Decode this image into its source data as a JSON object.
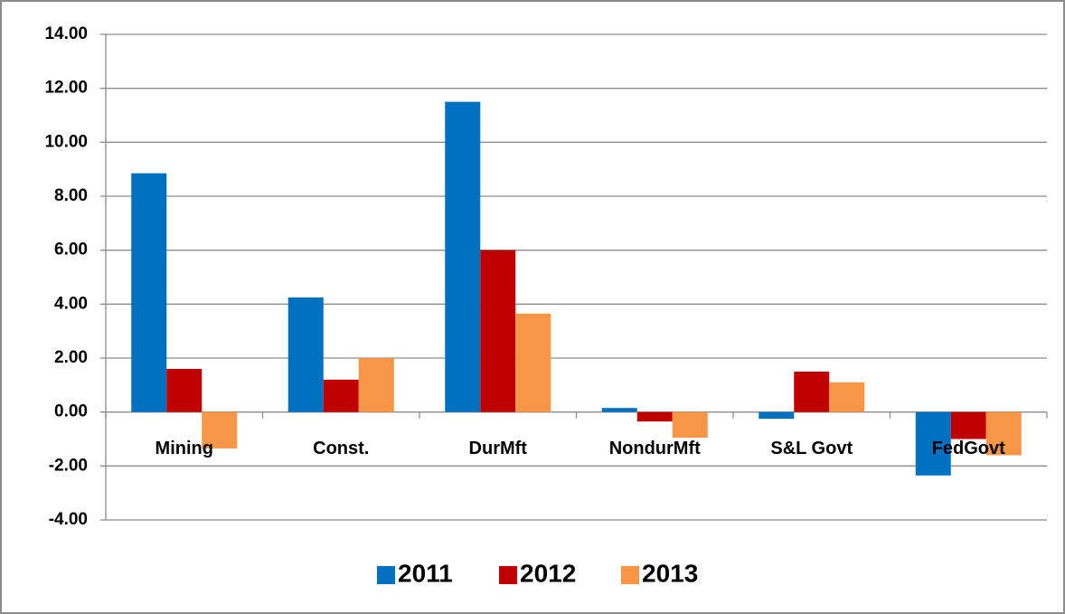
{
  "chart_data": {
    "type": "bar",
    "categories": [
      "Mining",
      "Const.",
      "DurMft",
      "NondurMft",
      "S&L Govt",
      "FedGovt"
    ],
    "series": [
      {
        "name": "2011",
        "color": "#0070c0",
        "values": [
          8.85,
          4.25,
          11.5,
          0.15,
          -0.25,
          -2.35
        ]
      },
      {
        "name": "2012",
        "color": "#c00000",
        "values": [
          1.6,
          1.2,
          6.0,
          -0.35,
          1.5,
          -1.0
        ]
      },
      {
        "name": "2013",
        "color": "#f79646",
        "values": [
          -1.35,
          2.0,
          3.65,
          -0.95,
          1.1,
          -1.6
        ]
      }
    ],
    "ylim": [
      -4,
      14
    ],
    "yticks": [
      {
        "value": -4,
        "label": "-4.00"
      },
      {
        "value": -2,
        "label": "-2.00"
      },
      {
        "value": 0,
        "label": "0.00"
      },
      {
        "value": 2,
        "label": "2.00"
      },
      {
        "value": 4,
        "label": "4.00"
      },
      {
        "value": 6,
        "label": "6.00"
      },
      {
        "value": 8,
        "label": "8.00"
      },
      {
        "value": 10,
        "label": "10.00"
      },
      {
        "value": 12,
        "label": "12.00"
      },
      {
        "value": 14,
        "label": "14.00"
      }
    ],
    "grid": true,
    "legend": "bottom"
  }
}
